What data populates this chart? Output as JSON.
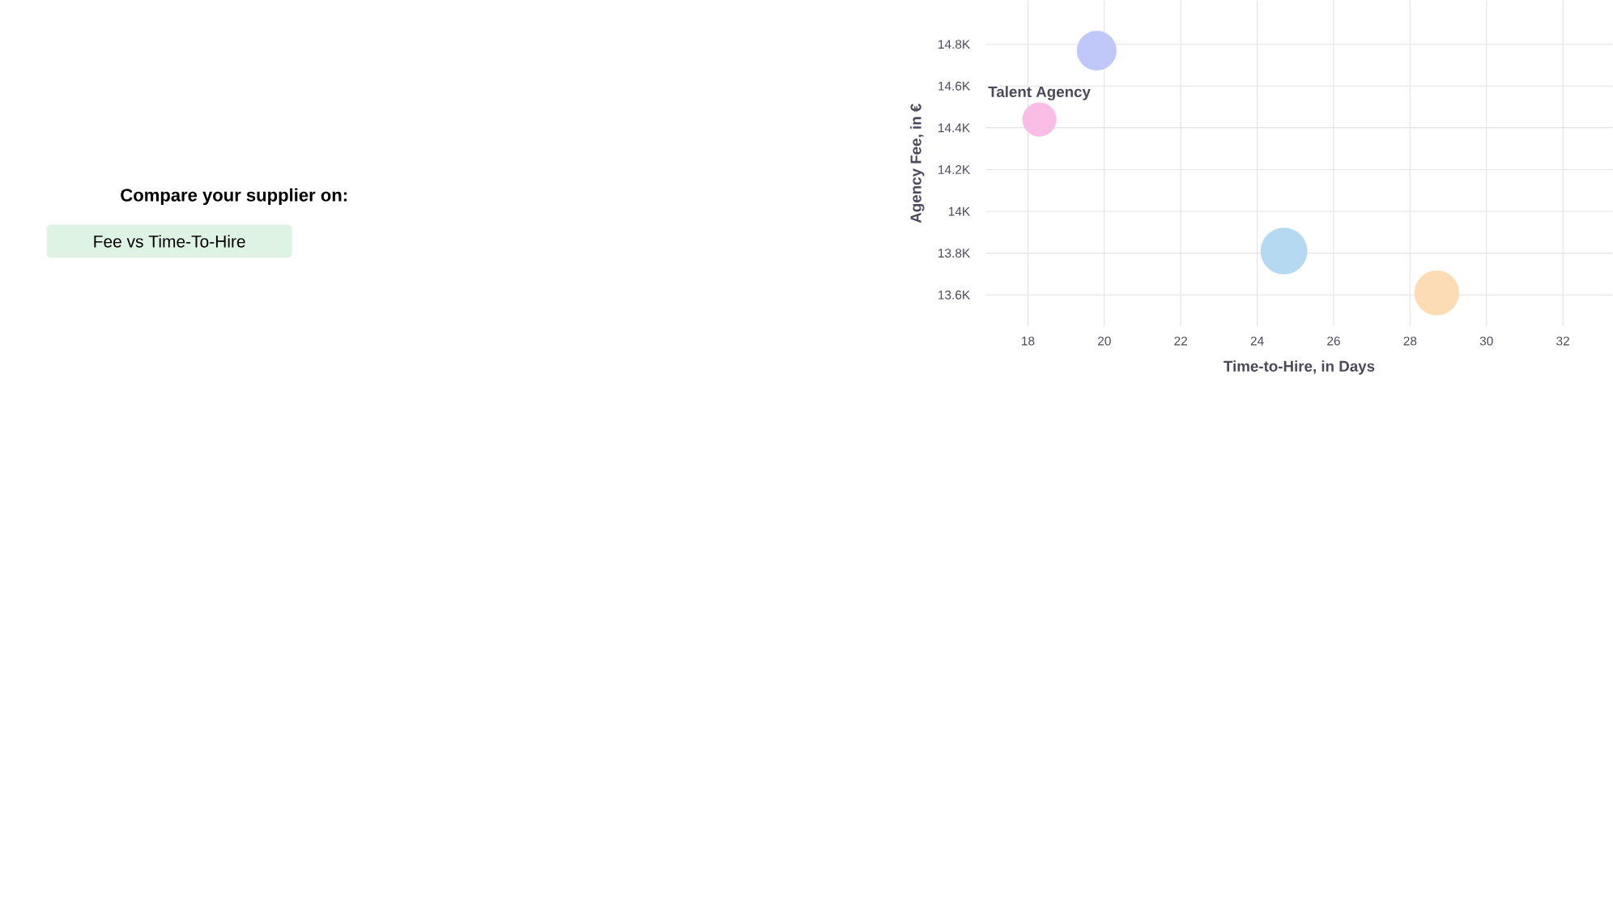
{
  "chart_data": {
    "type": "bubble",
    "title": "Compare your supplier on:",
    "subtitle": "Fee vs Time-To-Hire",
    "xlabel": "Time-to-Hire, in Days",
    "ylabel": "Agency Fee, in €",
    "x": [
      19.8,
      18.3,
      24.7,
      28.7
    ],
    "values": [
      14770,
      14440,
      13810,
      13610
    ],
    "sizes": [
      0.72,
      0.53,
      1,
      0.92
    ],
    "colors": [
      "#c0c8fa",
      "#f9bde6",
      "#b5d9f0",
      "#fbdcb4"
    ],
    "xlim": [
      16.9,
      33.3
    ],
    "ylim": [
      13450,
      15010
    ],
    "xticks": [
      18,
      20,
      22,
      24,
      26,
      28,
      30,
      32
    ],
    "yticks": [
      {
        "value": 13600,
        "label": "13.6K"
      },
      {
        "value": 13800,
        "label": "13.8K"
      },
      {
        "value": 14000,
        "label": "14K"
      },
      {
        "value": 14200,
        "label": "14.2K"
      },
      {
        "value": 14400,
        "label": "14.4K"
      },
      {
        "value": 14600,
        "label": "14.6K"
      },
      {
        "value": 14800,
        "label": "14.8K"
      }
    ],
    "grid": true,
    "annotations": [
      {
        "text": "Talent Agency",
        "x": 18.3,
        "y": 14440
      }
    ]
  }
}
